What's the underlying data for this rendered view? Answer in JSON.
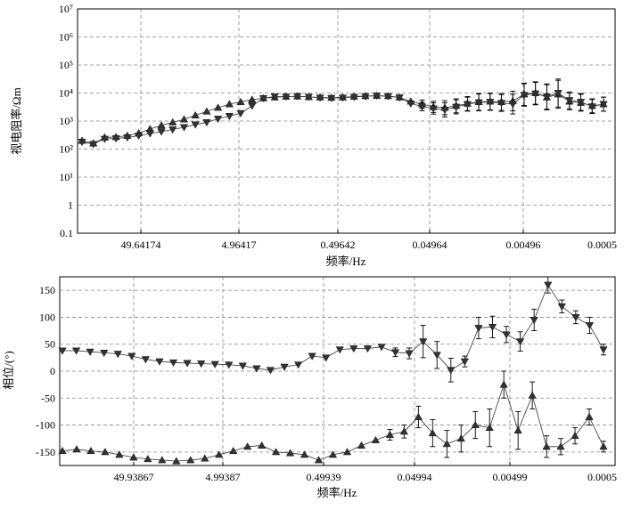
{
  "chart_data": [
    {
      "type": "line",
      "xlabel": "频率/Hz",
      "ylabel": "视电阻率/Ωm",
      "y_scale": "log",
      "ylim": [
        0.1,
        10000000
      ],
      "grid": true,
      "x_tick_labels": [
        "49.64174",
        "4.96417",
        "0.49642",
        "0.04964",
        "0.00496",
        "0.0005"
      ],
      "y_tick_labels": [
        "0.1",
        "1",
        "10¹",
        "10²",
        "10³",
        "10⁴",
        "10⁵",
        "10⁶",
        "10⁷"
      ],
      "series": [
        {
          "marker": "triangle-up",
          "y": [
            200,
            160,
            260,
            270,
            300,
            370,
            520,
            700,
            900,
            1150,
            1600,
            2200,
            3000,
            4000,
            4800,
            5800,
            6500,
            7000,
            7500,
            7600,
            7200,
            7000,
            6800,
            7000,
            7500,
            7800,
            8000,
            7800,
            7000,
            5000,
            4000,
            3200,
            3000,
            3500,
            4200,
            4800,
            5000,
            4800,
            5200,
            9000,
            10000,
            7000,
            9000,
            5000,
            4500,
            3500,
            4000
          ],
          "err": [
            0,
            0,
            0,
            0,
            0,
            0,
            0,
            0,
            0,
            0,
            0,
            0,
            0,
            0,
            0,
            0,
            0,
            0,
            0,
            0,
            0,
            0,
            0,
            0,
            0,
            0,
            0,
            0,
            0,
            0,
            0.15,
            0.2,
            0.25,
            0.25,
            0.25,
            0.3,
            0.3,
            0.3,
            0.35,
            0.4,
            0.4,
            0.45,
            0.5,
            0.3,
            0.3,
            0.25,
            0.25
          ]
        },
        {
          "marker": "triangle-down",
          "y": [
            180,
            150,
            230,
            240,
            260,
            300,
            360,
            420,
            500,
            600,
            750,
            900,
            1200,
            1500,
            1900,
            3500,
            6500,
            7500,
            7400,
            7700,
            7300,
            6800,
            6600,
            6800,
            7200,
            7600,
            8000,
            7600,
            6900,
            4200,
            3300,
            2800,
            2500,
            3200,
            4000,
            4600,
            4800,
            4400,
            4000,
            8500,
            9500,
            7500,
            10000,
            5500,
            4800,
            3300,
            4000
          ],
          "err": [
            0,
            0,
            0,
            0,
            0,
            0,
            0,
            0,
            0,
            0,
            0,
            0,
            0,
            0,
            0,
            0,
            0,
            0,
            0,
            0,
            0,
            0,
            0,
            0,
            0,
            0,
            0,
            0,
            0,
            0,
            0.15,
            0.2,
            0.25,
            0.25,
            0.25,
            0.3,
            0.3,
            0.3,
            0.35,
            0.4,
            0.4,
            0.45,
            0.5,
            0.3,
            0.3,
            0.25,
            0.25
          ]
        }
      ]
    },
    {
      "type": "line",
      "xlabel": "频率/Hz",
      "ylabel": "相位/(°)",
      "ylim": [
        -175,
        175
      ],
      "y_ticks": [
        150,
        100,
        50,
        0,
        -50,
        -100,
        -150
      ],
      "grid": true,
      "x_tick_labels": [
        "49.93867",
        "4.99387",
        "0.49939",
        "0.04994",
        "0.00499",
        "0.0005"
      ],
      "series": [
        {
          "marker": "triangle-down",
          "y": [
            38,
            38,
            36,
            34,
            32,
            28,
            22,
            18,
            16,
            15,
            14,
            13,
            12,
            10,
            5,
            2,
            8,
            12,
            28,
            25,
            40,
            42,
            42,
            45,
            35,
            33,
            55,
            30,
            2,
            18,
            80,
            82,
            68,
            55,
            95,
            160,
            120,
            100,
            85,
            40
          ],
          "err": [
            0,
            0,
            0,
            0,
            0,
            0,
            0,
            0,
            0,
            0,
            0,
            0,
            0,
            0,
            0,
            0,
            0,
            0,
            0,
            0,
            0,
            0,
            0,
            0,
            8,
            10,
            30,
            25,
            22,
            10,
            20,
            20,
            15,
            18,
            20,
            15,
            12,
            12,
            15,
            10
          ]
        },
        {
          "marker": "triangle-up",
          "y": [
            -148,
            -145,
            -148,
            -150,
            -155,
            -160,
            -163,
            -165,
            -167,
            -165,
            -162,
            -155,
            -148,
            -140,
            -138,
            -150,
            -152,
            -155,
            -165,
            -155,
            -150,
            -138,
            -128,
            -118,
            -112,
            -85,
            -115,
            -135,
            -125,
            -100,
            -105,
            -25,
            -110,
            -45,
            -140,
            -140,
            -120,
            -85,
            -140
          ],
          "err": [
            0,
            0,
            0,
            0,
            0,
            0,
            0,
            0,
            0,
            0,
            0,
            0,
            0,
            0,
            0,
            0,
            0,
            0,
            0,
            0,
            0,
            0,
            0,
            10,
            12,
            20,
            25,
            25,
            25,
            25,
            35,
            25,
            35,
            25,
            20,
            15,
            15,
            15,
            10
          ]
        }
      ]
    }
  ]
}
